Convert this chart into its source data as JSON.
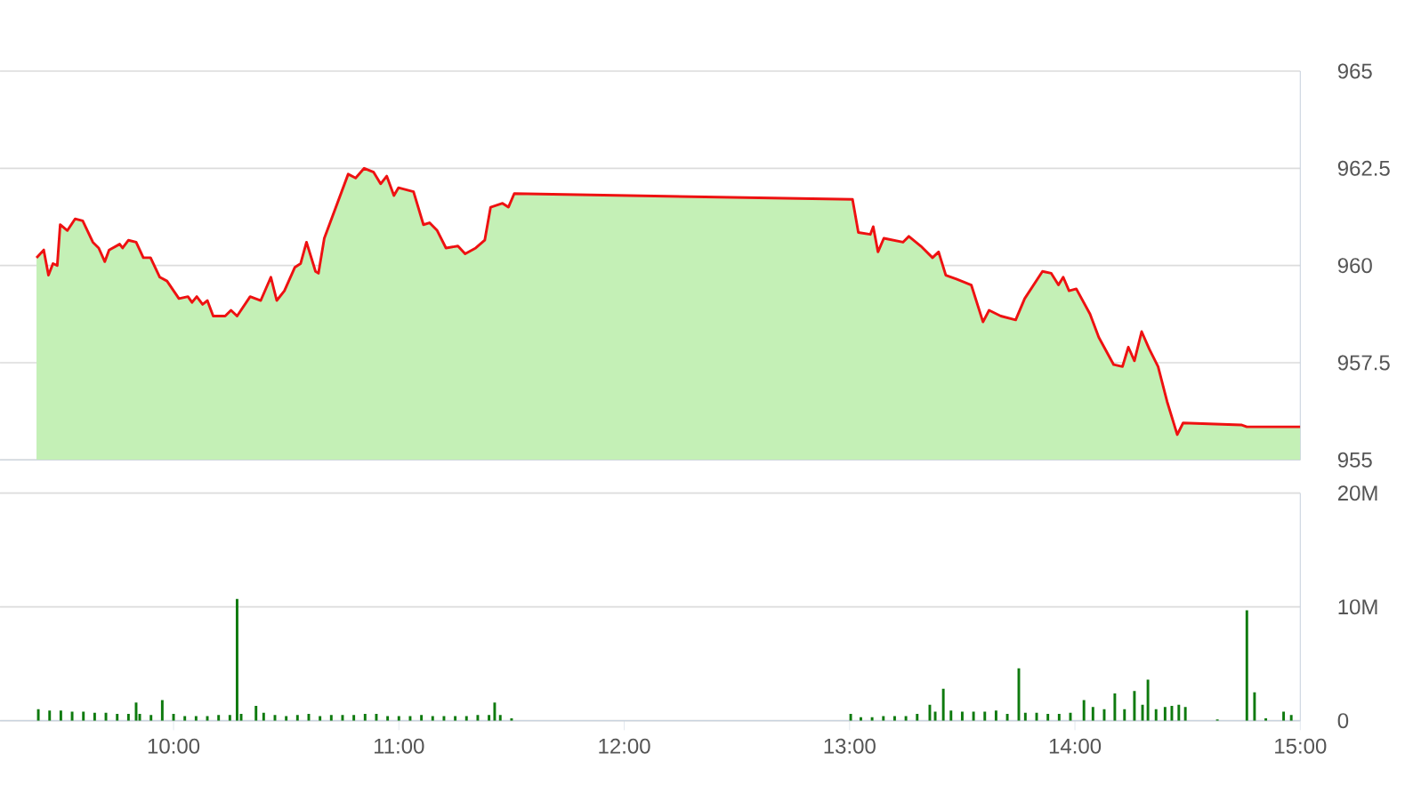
{
  "chart_data": [
    {
      "type": "area",
      "x": [
        9.392,
        9.424,
        9.445,
        9.465,
        9.484,
        9.497,
        9.529,
        9.563,
        9.597,
        9.642,
        9.668,
        9.695,
        9.714,
        9.761,
        9.774,
        9.8,
        9.834,
        9.866,
        9.898,
        9.939,
        9.971,
        10.024,
        10.064,
        10.082,
        10.103,
        10.129,
        10.15,
        10.176,
        10.229,
        10.255,
        10.282,
        10.34,
        10.387,
        10.432,
        10.458,
        10.492,
        10.538,
        10.564,
        10.59,
        10.63,
        10.643,
        10.669,
        10.775,
        10.808,
        10.846,
        10.888,
        10.919,
        10.946,
        10.978,
        10.998,
        11.065,
        11.109,
        11.136,
        11.17,
        11.209,
        11.262,
        11.294,
        11.341,
        11.381,
        11.407,
        11.46,
        11.486,
        11.512,
        13.013,
        13.039,
        13.092,
        13.105,
        13.126,
        13.152,
        13.237,
        13.263,
        13.316,
        13.368,
        13.395,
        13.427,
        13.474,
        13.54,
        13.592,
        13.619,
        13.671,
        13.737,
        13.777,
        13.856,
        13.895,
        13.927,
        13.948,
        13.974,
        14.006,
        14.067,
        14.106,
        14.172,
        14.211,
        14.237,
        14.264,
        14.296,
        14.33,
        14.369,
        14.409,
        14.454,
        14.48,
        14.738,
        14.763,
        15.0
      ],
      "series": [
        {
          "color": "#c4f0b6",
          "values": [
            960.2,
            960.4,
            959.75,
            960.05,
            960.0,
            961.05,
            960.9,
            961.2,
            961.15,
            960.6,
            960.45,
            960.1,
            960.4,
            960.55,
            960.45,
            960.65,
            960.6,
            960.2,
            960.2,
            959.7,
            959.6,
            959.15,
            959.2,
            959.05,
            959.2,
            959.0,
            959.1,
            958.7,
            958.7,
            958.85,
            958.7,
            959.2,
            959.1,
            959.7,
            959.1,
            959.35,
            959.95,
            960.05,
            960.6,
            959.85,
            959.8,
            960.7,
            962.35,
            962.25,
            962.5,
            962.4,
            962.1,
            962.3,
            961.8,
            962.0,
            961.9,
            961.05,
            961.1,
            960.9,
            960.45,
            960.5,
            960.3,
            960.45,
            960.65,
            961.5,
            961.6,
            961.5,
            961.85,
            961.7,
            960.85,
            960.8,
            961.0,
            960.35,
            960.7,
            960.6,
            960.75,
            960.5,
            960.2,
            960.35,
            959.75,
            959.65,
            959.5,
            958.55,
            958.85,
            958.7,
            958.6,
            959.15,
            959.85,
            959.8,
            959.5,
            959.7,
            959.35,
            959.4,
            958.75,
            958.15,
            957.45,
            957.4,
            957.9,
            957.55,
            958.3,
            957.85,
            957.4,
            956.5,
            955.65,
            955.95,
            955.9,
            955.85,
            955.85
          ]
        },
        {
          "type": "line",
          "color": "#ee1111",
          "values": [
            960.2,
            960.4,
            959.75,
            960.05,
            960.0,
            961.05,
            960.9,
            961.2,
            961.15,
            960.6,
            960.45,
            960.1,
            960.4,
            960.55,
            960.45,
            960.65,
            960.6,
            960.2,
            960.2,
            959.7,
            959.6,
            959.15,
            959.2,
            959.05,
            959.2,
            959.0,
            959.1,
            958.7,
            958.7,
            958.85,
            958.7,
            959.2,
            959.1,
            959.7,
            959.1,
            959.35,
            959.95,
            960.05,
            960.6,
            959.85,
            959.8,
            960.7,
            962.35,
            962.25,
            962.5,
            962.4,
            962.1,
            962.3,
            961.8,
            962.0,
            961.9,
            961.05,
            961.1,
            960.9,
            960.45,
            960.5,
            960.3,
            960.45,
            960.65,
            961.5,
            961.6,
            961.5,
            961.85,
            961.7,
            960.85,
            960.8,
            961.0,
            960.35,
            960.7,
            960.6,
            960.75,
            960.5,
            960.2,
            960.35,
            959.75,
            959.65,
            959.5,
            958.55,
            958.85,
            958.7,
            958.6,
            959.15,
            959.85,
            959.8,
            959.5,
            959.7,
            959.35,
            959.4,
            958.75,
            958.15,
            957.45,
            957.4,
            957.9,
            957.55,
            958.3,
            957.85,
            957.4,
            956.5,
            955.65,
            955.95,
            955.9,
            955.85,
            955.85
          ]
        }
      ],
      "xlim": [
        9.23,
        15.0
      ],
      "ylim": [
        955,
        965
      ],
      "yticks": [
        955,
        957.5,
        960,
        962.5,
        965
      ],
      "grid": "y",
      "tick_labels": "y"
    },
    {
      "type": "bar",
      "x": [
        9.4,
        9.45,
        9.5,
        9.55,
        9.6,
        9.65,
        9.7,
        9.75,
        9.8,
        9.834,
        9.85,
        9.9,
        9.95,
        10.0,
        10.05,
        10.1,
        10.15,
        10.2,
        10.25,
        10.282,
        10.3,
        10.366,
        10.4,
        10.45,
        10.5,
        10.55,
        10.6,
        10.65,
        10.7,
        10.75,
        10.8,
        10.85,
        10.9,
        10.95,
        11.0,
        11.05,
        11.1,
        11.15,
        11.2,
        11.25,
        11.3,
        11.35,
        11.4,
        11.425,
        11.45,
        11.5,
        13.005,
        13.05,
        13.1,
        13.15,
        13.2,
        13.25,
        13.3,
        13.356,
        13.38,
        13.416,
        13.45,
        13.5,
        13.55,
        13.6,
        13.65,
        13.7,
        13.751,
        13.78,
        13.83,
        13.88,
        13.93,
        13.98,
        14.04,
        14.08,
        14.13,
        14.177,
        14.22,
        14.264,
        14.3,
        14.324,
        14.36,
        14.4,
        14.43,
        14.461,
        14.49,
        14.632,
        14.763,
        14.797,
        14.847,
        14.926,
        14.96
      ],
      "values": [
        1.0,
        0.9,
        0.9,
        0.8,
        0.8,
        0.7,
        0.7,
        0.6,
        0.6,
        1.6,
        0.6,
        0.5,
        1.8,
        0.6,
        0.4,
        0.4,
        0.4,
        0.5,
        0.5,
        10.7,
        0.6,
        1.3,
        0.7,
        0.5,
        0.4,
        0.5,
        0.6,
        0.4,
        0.5,
        0.5,
        0.5,
        0.6,
        0.6,
        0.4,
        0.4,
        0.4,
        0.5,
        0.4,
        0.4,
        0.4,
        0.4,
        0.5,
        0.5,
        1.6,
        0.5,
        0.2,
        0.6,
        0.3,
        0.3,
        0.4,
        0.4,
        0.4,
        0.6,
        1.4,
        0.8,
        2.8,
        0.9,
        0.8,
        0.8,
        0.8,
        0.9,
        0.6,
        4.6,
        0.7,
        0.7,
        0.6,
        0.6,
        0.7,
        1.8,
        1.2,
        1.0,
        2.4,
        1.0,
        2.6,
        1.4,
        3.6,
        1.0,
        1.2,
        1.3,
        1.4,
        1.2,
        0.1,
        9.7,
        2.5,
        0.2,
        0.8,
        0.5
      ],
      "color": "#0e7a0e",
      "xlim": [
        9.23,
        15.0
      ],
      "ylim": [
        0,
        20
      ],
      "xticks": [
        {
          "value": 10,
          "label": "10:00"
        },
        {
          "value": 11,
          "label": "11:00"
        },
        {
          "value": 12,
          "label": "12:00"
        },
        {
          "value": 13,
          "label": "13:00"
        },
        {
          "value": 14,
          "label": "14:00"
        },
        {
          "value": 15,
          "label": "15:00"
        }
      ],
      "yticks": [
        0,
        {
          "value": 10,
          "label": "10M"
        },
        {
          "value": 20,
          "label": "20M"
        }
      ],
      "grid": "y"
    }
  ]
}
